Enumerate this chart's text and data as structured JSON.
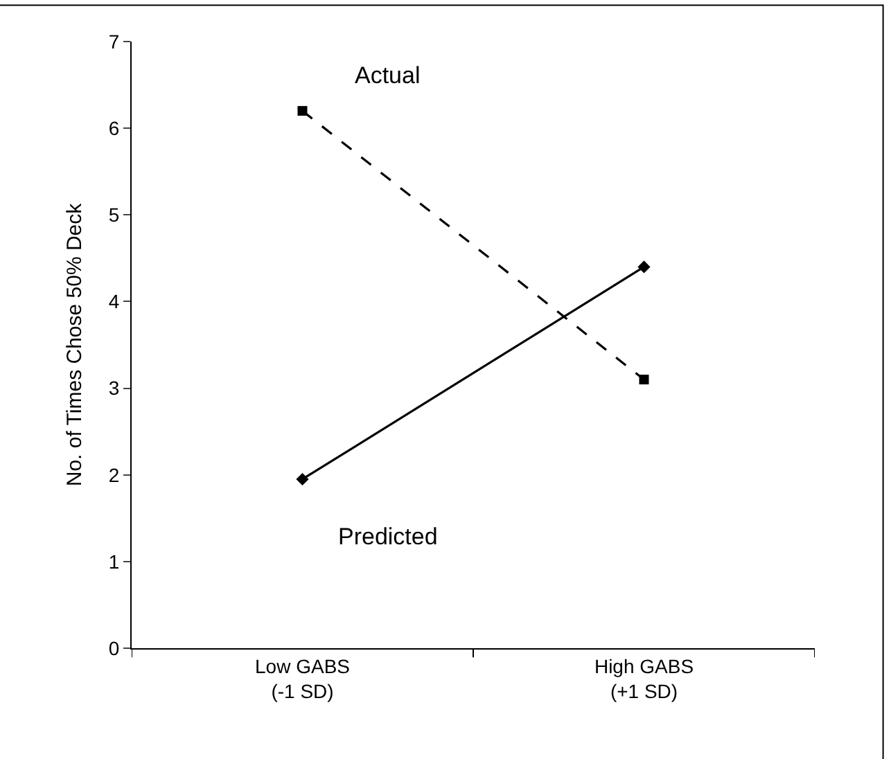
{
  "chart_data": {
    "type": "line",
    "ylabel": "No. of Times Chose 50% Deck",
    "categories": [
      "Low GABS\n(-1 SD)",
      "High GABS\n(+1 SD)"
    ],
    "series": [
      {
        "name": "Actual",
        "color": "#000000",
        "values": [
          6.2,
          3.1
        ],
        "marker": "square",
        "line_style": "dashed"
      },
      {
        "name": "Predicted",
        "color": "#000000",
        "values": [
          1.95,
          4.4
        ],
        "marker": "diamond",
        "line_style": "solid"
      }
    ],
    "ylim": [
      0,
      7
    ],
    "yticks": [
      0,
      1,
      2,
      3,
      4,
      5,
      6,
      7
    ],
    "legend": false
  }
}
